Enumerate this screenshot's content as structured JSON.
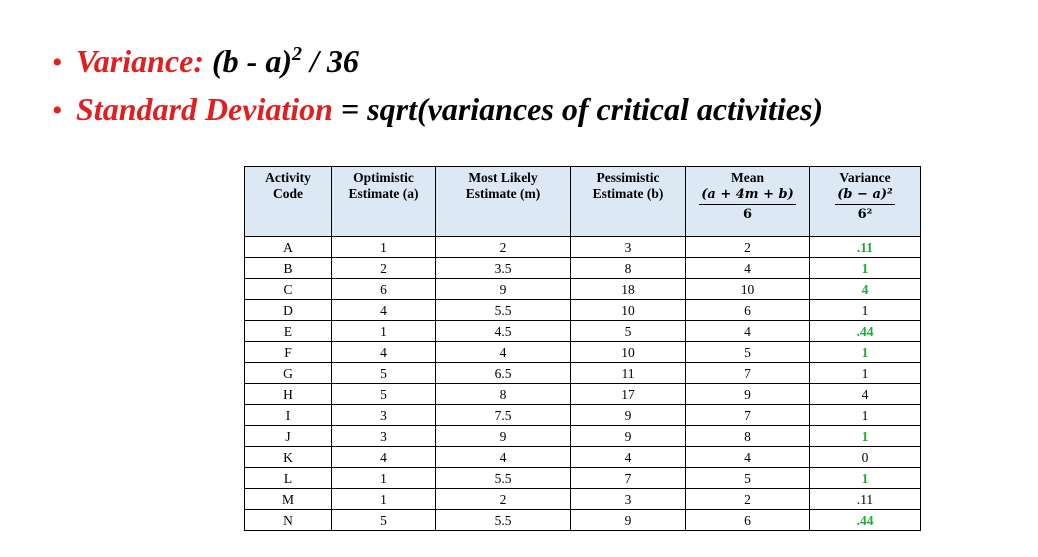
{
  "bullets": {
    "line1": {
      "label": "Variance:",
      "formula": "(b - a)",
      "sup": "2",
      "rest": " / 36"
    },
    "line2": {
      "label": "Standard Deviation",
      "formula": " = sqrt(variances of critical activities)"
    }
  },
  "colors": {
    "label_red": "#e02020",
    "header_bg": "#dde8f5",
    "value_green": "#22aa33"
  },
  "table": {
    "headers": {
      "activity": [
        "Activity",
        "Code"
      ],
      "optimistic": [
        "Optimistic",
        "Estimate (a)"
      ],
      "most_likely": [
        "Most Likely",
        "Estimate (m)"
      ],
      "pessimistic": [
        "Pessimistic",
        "Estimate (b)"
      ],
      "mean": [
        "Mean",
        "(a + 4m + b)",
        "6"
      ],
      "variance": [
        "Variance",
        "(b − a)²",
        "6²"
      ]
    },
    "rows": [
      {
        "code": "A",
        "a": "1",
        "m": "2",
        "b": "3",
        "mean": "2",
        "var": ".11",
        "var_green": true
      },
      {
        "code": "B",
        "a": "2",
        "m": "3.5",
        "b": "8",
        "mean": "4",
        "var": "1",
        "var_green": true
      },
      {
        "code": "C",
        "a": "6",
        "m": "9",
        "b": "18",
        "mean": "10",
        "var": "4",
        "var_green": true
      },
      {
        "code": "D",
        "a": "4",
        "m": "5.5",
        "b": "10",
        "mean": "6",
        "var": "1",
        "var_green": false
      },
      {
        "code": "E",
        "a": "1",
        "m": "4.5",
        "b": "5",
        "mean": "4",
        "var": ".44",
        "var_green": true
      },
      {
        "code": "F",
        "a": "4",
        "m": "4",
        "b": "10",
        "mean": "5",
        "var": "1",
        "var_green": true
      },
      {
        "code": "G",
        "a": "5",
        "m": "6.5",
        "b": "11",
        "mean": "7",
        "var": "1",
        "var_green": false
      },
      {
        "code": "H",
        "a": "5",
        "m": "8",
        "b": "17",
        "mean": "9",
        "var": "4",
        "var_green": false
      },
      {
        "code": "I",
        "a": "3",
        "m": "7.5",
        "b": "9",
        "mean": "7",
        "var": "1",
        "var_green": false
      },
      {
        "code": "J",
        "a": "3",
        "m": "9",
        "b": "9",
        "mean": "8",
        "var": "1",
        "var_green": true
      },
      {
        "code": "K",
        "a": "4",
        "m": "4",
        "b": "4",
        "mean": "4",
        "var": "0",
        "var_green": false
      },
      {
        "code": "L",
        "a": "1",
        "m": "5.5",
        "b": "7",
        "mean": "5",
        "var": "1",
        "var_green": true
      },
      {
        "code": "M",
        "a": "1",
        "m": "2",
        "b": "3",
        "mean": "2",
        "var": ".11",
        "var_green": false
      },
      {
        "code": "N",
        "a": "5",
        "m": "5.5",
        "b": "9",
        "mean": "6",
        "var": ".44",
        "var_green": true
      }
    ]
  }
}
